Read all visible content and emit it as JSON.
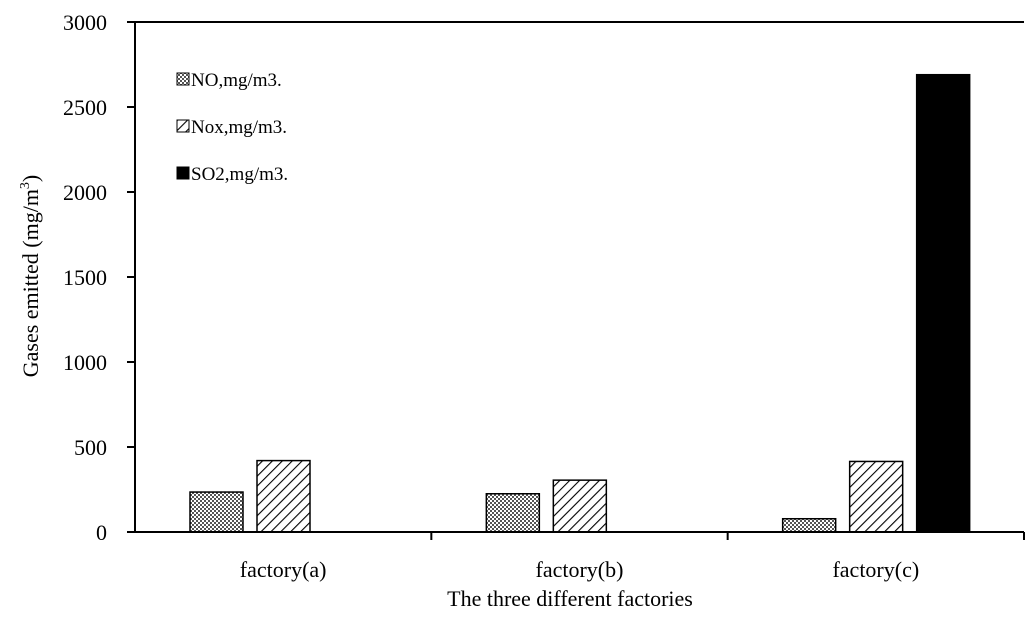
{
  "chart_data": {
    "type": "bar",
    "title": "",
    "xlabel": "The three different factories",
    "ylabel": {
      "main": "Gases emitted (mg/m",
      "superscript": "3",
      "close": ")"
    },
    "categories": [
      "factory(a)",
      "factory(b)",
      "factory(c)"
    ],
    "series": [
      {
        "name": "NO,mg/m3.",
        "values": [
          235,
          225,
          78
        ],
        "pattern": "crosshatch"
      },
      {
        "name": "Nox,mg/m3.",
        "values": [
          420,
          305,
          415
        ],
        "pattern": "diagonal"
      },
      {
        "name": "SO2,mg/m3.",
        "values": [
          0,
          0,
          2690
        ],
        "pattern": "solid"
      }
    ],
    "ylim": [
      0,
      3000
    ],
    "yticks": [
      "0",
      "500",
      "1000",
      "1500",
      "2000",
      "2500",
      "3000"
    ],
    "ytick_values": [
      0,
      500,
      1000,
      1500,
      2000,
      2500,
      3000
    ],
    "grid": false,
    "legend_position": "top-left"
  }
}
